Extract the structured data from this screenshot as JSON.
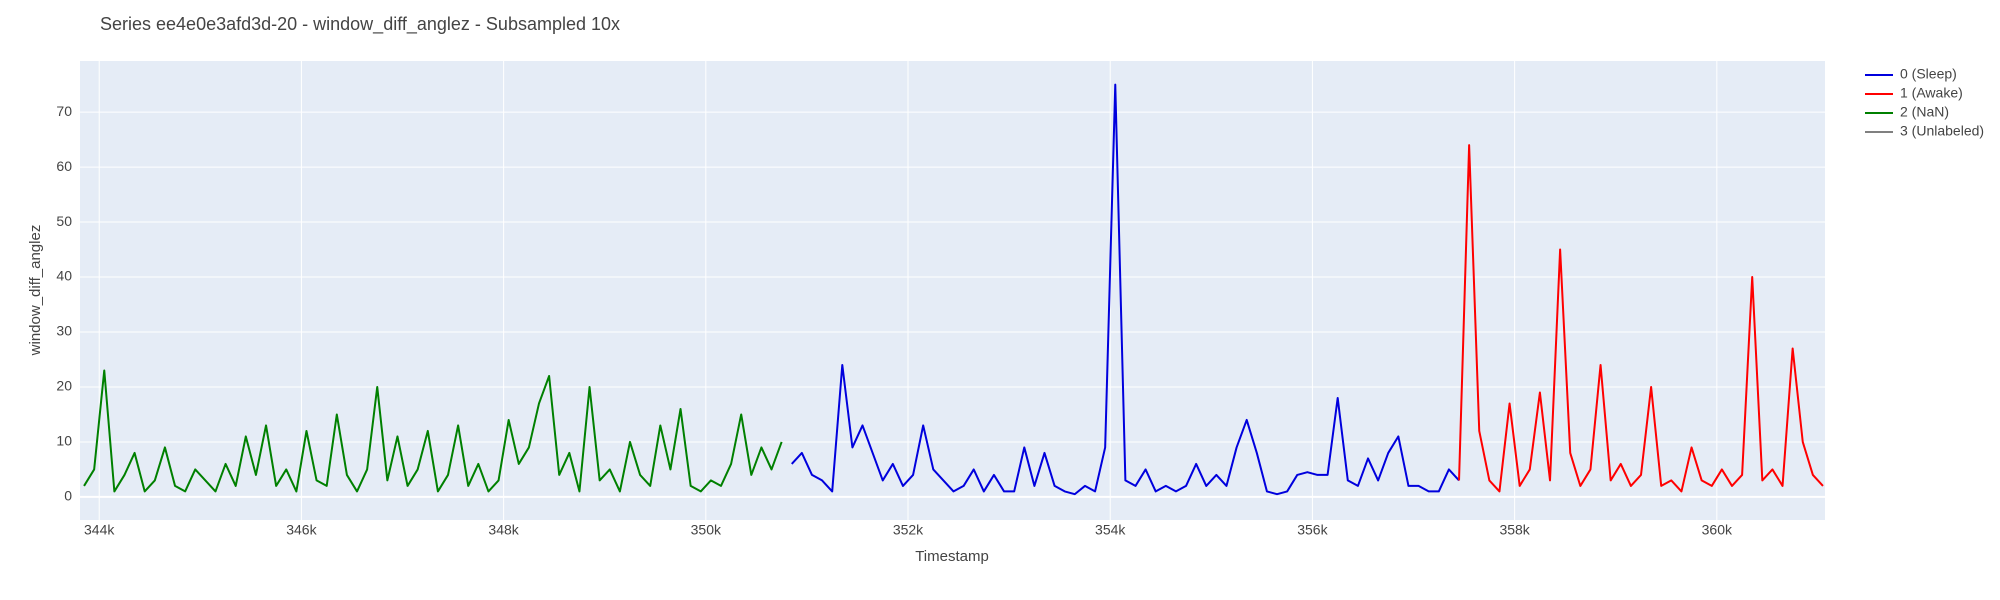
{
  "chart_data": {
    "type": "line",
    "title": "Series ee4e0e3afd3d-20 - window_diff_anglez - Subsampled 10x",
    "x_label": "Timestamp",
    "y_label": "window_diff_anglez",
    "xlim": [
      343810,
      361070
    ],
    "ylim": [
      -4.2,
      79.3
    ],
    "xticks": [
      {
        "value": 344000,
        "label": "344k"
      },
      {
        "value": 346000,
        "label": "346k"
      },
      {
        "value": 348000,
        "label": "348k"
      },
      {
        "value": 350000,
        "label": "350k"
      },
      {
        "value": 352000,
        "label": "352k"
      },
      {
        "value": 354000,
        "label": "354k"
      },
      {
        "value": 356000,
        "label": "356k"
      },
      {
        "value": 358000,
        "label": "358k"
      },
      {
        "value": 360000,
        "label": "360k"
      }
    ],
    "yticks": [
      0,
      10,
      20,
      30,
      40,
      50,
      60,
      70
    ],
    "grid": true,
    "legend": "right",
    "series": [
      {
        "name": "0 (Sleep)",
        "color": "#0000dd",
        "x": [
          350850,
          350950,
          351050,
          351150,
          351250,
          351350,
          351450,
          351550,
          351650,
          351750,
          351850,
          351950,
          352050,
          352150,
          352250,
          352350,
          352450,
          352550,
          352650,
          352750,
          352850,
          352950,
          353050,
          353150,
          353250,
          353350,
          353450,
          353550,
          353650,
          353750,
          353850,
          353950,
          354050,
          354150,
          354250,
          354350,
          354450,
          354550,
          354650,
          354750,
          354850,
          354950,
          355050,
          355150,
          355250,
          355350,
          355450,
          355550,
          355650,
          355750,
          355850,
          355950,
          356050,
          356150,
          356250,
          356350,
          356450,
          356550,
          356650,
          356750,
          356850,
          356950,
          357050,
          357150,
          357250,
          357350,
          357450
        ],
        "values": [
          6,
          8,
          4,
          3,
          1,
          24,
          9,
          13,
          8,
          3,
          6,
          2,
          4,
          13,
          5,
          3,
          1,
          2,
          5,
          1,
          4,
          1,
          1,
          9,
          2,
          8,
          2,
          1,
          0.5,
          2,
          1,
          9,
          75,
          3,
          2,
          5,
          1,
          2,
          1,
          2,
          6,
          2,
          4,
          2,
          9,
          14,
          8,
          1,
          0.5,
          1,
          4,
          4.5,
          4,
          4,
          18,
          3,
          2,
          7,
          3,
          8,
          11,
          2,
          2,
          1,
          1,
          5,
          3
        ]
      },
      {
        "name": "1 (Awake)",
        "color": "#ff0000",
        "x": [
          357450,
          357550,
          357650,
          357750,
          357850,
          357950,
          358050,
          358150,
          358250,
          358350,
          358450,
          358550,
          358650,
          358750,
          358850,
          358950,
          359050,
          359150,
          359250,
          359350,
          359450,
          359550,
          359650,
          359750,
          359850,
          359950,
          360050,
          360150,
          360250,
          360350,
          360450,
          360550,
          360650,
          360750,
          360850,
          360950,
          361050
        ],
        "values": [
          3,
          64,
          12,
          3,
          1,
          17,
          2,
          5,
          19,
          3,
          45,
          8,
          2,
          5,
          24,
          3,
          6,
          2,
          4,
          20,
          2,
          3,
          1,
          9,
          3,
          2,
          5,
          2,
          4,
          40,
          3,
          5,
          2,
          27,
          10,
          4,
          2
        ]
      },
      {
        "name": "2 (NaN)",
        "color": "#008000",
        "x": [
          343850,
          343950,
          344050,
          344150,
          344250,
          344350,
          344450,
          344550,
          344650,
          344750,
          344850,
          344950,
          345050,
          345150,
          345250,
          345350,
          345450,
          345550,
          345650,
          345750,
          345850,
          345950,
          346050,
          346150,
          346250,
          346350,
          346450,
          346550,
          346650,
          346750,
          346850,
          346950,
          347050,
          347150,
          347250,
          347350,
          347450,
          347550,
          347650,
          347750,
          347850,
          347950,
          348050,
          348150,
          348250,
          348350,
          348450,
          348550,
          348650,
          348750,
          348850,
          348950,
          349050,
          349150,
          349250,
          349350,
          349450,
          349550,
          349650,
          349750,
          349850,
          349950,
          350050,
          350150,
          350250,
          350350,
          350450,
          350550,
          350650,
          350750
        ],
        "values": [
          2,
          5,
          23,
          1,
          4,
          8,
          1,
          3,
          9,
          2,
          1,
          5,
          3,
          1,
          6,
          2,
          11,
          4,
          13,
          2,
          5,
          1,
          12,
          3,
          2,
          15,
          4,
          1,
          5,
          20,
          3,
          11,
          2,
          5,
          12,
          1,
          4,
          13,
          2,
          6,
          1,
          3,
          14,
          6,
          9,
          17,
          22,
          4,
          8,
          1,
          20,
          3,
          5,
          1,
          10,
          4,
          2,
          13,
          5,
          16,
          2,
          1,
          3,
          2,
          6,
          15,
          4,
          9,
          5,
          10
        ]
      },
      {
        "name": "3 (Unlabeled)",
        "color": "#808080",
        "x": [],
        "values": []
      }
    ]
  }
}
